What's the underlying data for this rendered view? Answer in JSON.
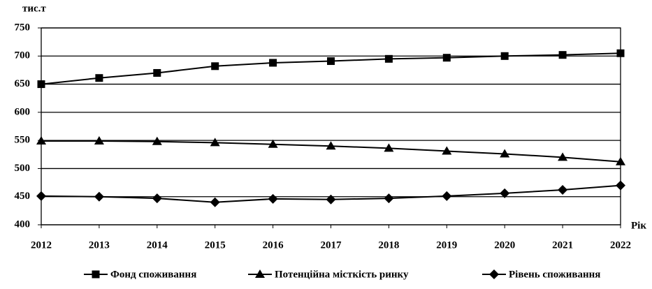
{
  "chart_data": {
    "type": "line",
    "y_label": "тис.т",
    "x_label": "Рік",
    "categories": [
      "2012",
      "2013",
      "2014",
      "2015",
      "2016",
      "2017",
      "2018",
      "2019",
      "2020",
      "2021",
      "2022"
    ],
    "series": [
      {
        "name": "Фонд споживання",
        "color": "#000000",
        "marker": "square",
        "values": [
          650,
          661,
          670,
          682,
          688,
          691,
          695,
          697,
          700,
          702,
          705
        ]
      },
      {
        "name": "Потенційна місткість ринку",
        "color": "#000000",
        "marker": "triangle",
        "values": [
          549,
          549,
          548,
          546,
          543,
          540,
          536,
          531,
          526,
          520,
          512
        ]
      },
      {
        "name": "Рівень споживання",
        "color": "#000000",
        "marker": "diamond",
        "values": [
          451,
          450,
          447,
          440,
          446,
          445,
          447,
          451,
          456,
          462,
          470
        ]
      }
    ],
    "ylim": [
      400,
      750
    ],
    "yticks": [
      400,
      450,
      500,
      550,
      600,
      650,
      700,
      750
    ],
    "grid": true,
    "legend": "bottom"
  }
}
